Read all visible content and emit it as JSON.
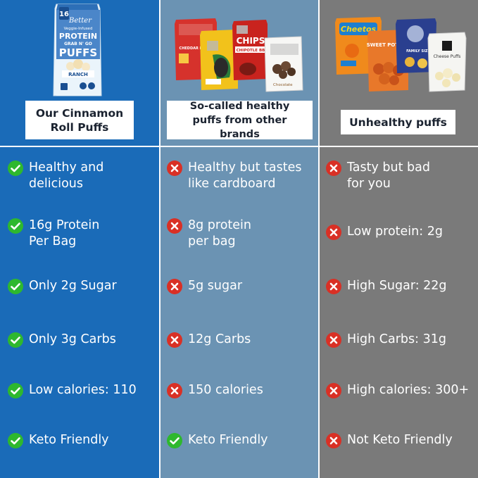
{
  "colors": {
    "column_1_bg": "#1a6bb8",
    "column_2_bg": "#6b93b3",
    "column_3_bg": "#7a7a7a",
    "check_green": "#2eb82e",
    "cross_red": "#d93025"
  },
  "columns": [
    {
      "header": "Our Cinnamon\nRoll Puffs",
      "product_text": {
        "count": "16",
        "brand": "Better",
        "tag": "Veggie-Infused",
        "line1": "PROTEIN",
        "line2": "GRAB N' GO",
        "line3": "PUFFS",
        "flavor": "RANCH"
      },
      "rows": [
        {
          "icon": "check-icon",
          "text": "Healthy and\ndelicious"
        },
        {
          "icon": "check-icon",
          "text": "16g Protein\nPer Bag"
        },
        {
          "icon": "check-icon",
          "text": "Only 2g Sugar"
        },
        {
          "icon": "check-icon",
          "text": "Only 3g Carbs"
        },
        {
          "icon": "check-icon",
          "text": "Low calories: 110"
        },
        {
          "icon": "check-icon",
          "text": "Keto Friendly"
        }
      ]
    },
    {
      "header": "So-called healthy\npuffs from other brands",
      "product_text": {
        "bag1": "CHEDDAR BLAST",
        "bag3": "CHIPS",
        "bag3b": "CHIPOTLE BB",
        "box": "Chocolate"
      },
      "rows": [
        {
          "icon": "cross-icon",
          "text": "Healthy but tastes\nlike cardboard"
        },
        {
          "icon": "cross-icon",
          "text": "8g protein\nper bag"
        },
        {
          "icon": "cross-icon",
          "text": "5g sugar"
        },
        {
          "icon": "cross-icon",
          "text": "12g Carbs"
        },
        {
          "icon": "cross-icon",
          "text": "150 calories"
        },
        {
          "icon": "check-icon",
          "text": "Keto Friendly"
        }
      ]
    },
    {
      "header": "Unhealthy puffs",
      "product_text": {
        "bag1": "Cheetos",
        "bag2": "SWEET\nPOTATO",
        "bag3": "FAMILY SIZE",
        "bag4": "Cheese\nPuffs"
      },
      "rows": [
        {
          "icon": "cross-icon",
          "text": "Tasty but bad\nfor you"
        },
        {
          "icon": "cross-icon",
          "text": "Low protein: 2g"
        },
        {
          "icon": "cross-icon",
          "text": "High Sugar: 22g"
        },
        {
          "icon": "cross-icon",
          "text": "High Carbs: 31g"
        },
        {
          "icon": "cross-icon",
          "text": "High calories: 300+"
        },
        {
          "icon": "cross-icon",
          "text": "Not Keto Friendly"
        }
      ]
    }
  ]
}
